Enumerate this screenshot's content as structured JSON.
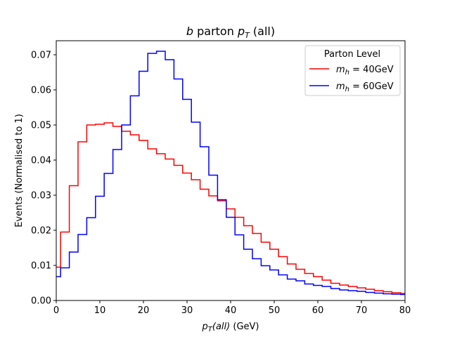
{
  "chart_data": {
    "type": "line",
    "drawstyle": "steps",
    "title_italic": "b",
    "title_rest": " parton ",
    "title_pt": "p",
    "title_pt_sub": "T",
    "title_all": " (all)",
    "xlabel_p": "p",
    "xlabel_sub": "T",
    "xlabel_arg": "(all)",
    "xlabel_unit": " (GeV)",
    "ylabel": "Events (Normalised to 1)",
    "xlim": [
      0,
      80
    ],
    "ylim": [
      0,
      0.074
    ],
    "xticks": [
      0,
      10,
      20,
      30,
      40,
      50,
      60,
      70,
      80
    ],
    "xtick_labels": [
      "0",
      "10",
      "20",
      "30",
      "40",
      "50",
      "60",
      "70",
      "80"
    ],
    "yticks": [
      0.0,
      0.01,
      0.02,
      0.03,
      0.04,
      0.05,
      0.06,
      0.07
    ],
    "ytick_labels": [
      "0.00",
      "0.01",
      "0.02",
      "0.03",
      "0.04",
      "0.05",
      "0.06",
      "0.07"
    ],
    "legend": {
      "title": "Parton Level",
      "location": "top-right",
      "entries": [
        {
          "m": "m",
          "sub": "h",
          "eq": " = 40GeV",
          "color": "#ff0000"
        },
        {
          "m": "m",
          "sub": "h",
          "eq": " = 60GeV",
          "color": "#0000ff"
        }
      ]
    },
    "bin_edges": [
      0,
      1,
      3,
      5,
      7,
      9,
      11,
      13,
      15,
      17,
      19,
      21,
      23,
      25,
      27,
      29,
      31,
      33,
      35,
      37,
      39,
      41,
      43,
      45,
      47,
      49,
      51,
      53,
      55,
      57,
      59,
      61,
      63,
      65,
      67,
      69,
      71,
      73,
      75,
      77,
      79,
      80
    ],
    "series": [
      {
        "name": "m_h = 40GeV",
        "color": "#ff0000",
        "values": [
          0.0095,
          0.0195,
          0.0327,
          0.0452,
          0.05,
          0.0502,
          0.0506,
          0.0496,
          0.0482,
          0.0472,
          0.0456,
          0.0432,
          0.0418,
          0.0403,
          0.0385,
          0.0363,
          0.0344,
          0.0317,
          0.0298,
          0.0284,
          0.0261,
          0.0237,
          0.0213,
          0.0191,
          0.0166,
          0.0146,
          0.0125,
          0.0104,
          0.0089,
          0.0077,
          0.0068,
          0.0058,
          0.0049,
          0.0044,
          0.004,
          0.0036,
          0.0032,
          0.0028,
          0.0025,
          0.0022,
          0.002
        ]
      },
      {
        "name": "m_h = 60GeV",
        "color": "#0000ff",
        "values": [
          0.0068,
          0.0093,
          0.0138,
          0.0188,
          0.0236,
          0.0297,
          0.0362,
          0.043,
          0.05,
          0.0583,
          0.0653,
          0.0704,
          0.071,
          0.0686,
          0.0631,
          0.0573,
          0.0508,
          0.0438,
          0.0357,
          0.0287,
          0.0237,
          0.0187,
          0.0146,
          0.0119,
          0.0099,
          0.0087,
          0.0073,
          0.0061,
          0.0056,
          0.0047,
          0.0043,
          0.004,
          0.0034,
          0.003,
          0.0028,
          0.0026,
          0.0023,
          0.0021,
          0.0019,
          0.0018,
          0.0017
        ]
      }
    ]
  }
}
